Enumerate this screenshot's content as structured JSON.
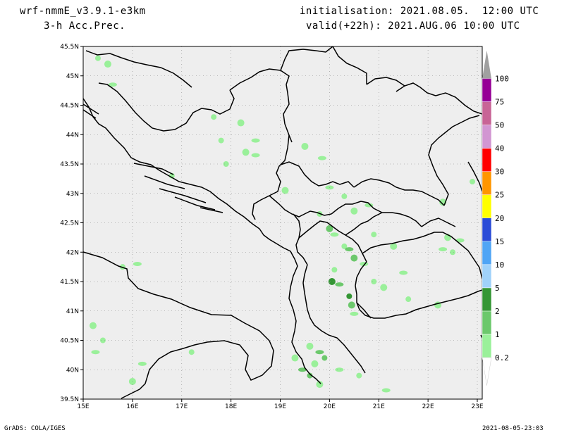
{
  "header": {
    "model": "wrf-nmmE_v3.9.1-e3km",
    "field": "3-h Acc.Prec.",
    "init": "initialisation: 2021.08.05.  12:00 UTC",
    "valid": "valid(+22h): 2021.AUG.06 10:00 UTC"
  },
  "footer": {
    "credit": "GrADS: COLA/IGES",
    "timestamp": "2021-08-05-23:03"
  },
  "map": {
    "lat_ticks": [
      "45.5N",
      "45N",
      "44.5N",
      "44N",
      "43.5N",
      "43N",
      "42.5N",
      "42N",
      "41.5N",
      "41N",
      "40.5N",
      "40N",
      "39.5N"
    ],
    "lon_ticks": [
      "15E",
      "16E",
      "17E",
      "18E",
      "19E",
      "20E",
      "21E",
      "22E",
      "23E"
    ],
    "lat_range": [
      39.5,
      45.5
    ],
    "lon_range": [
      15,
      23.1
    ],
    "grid": true,
    "background_color": "#eeeeee"
  },
  "colorbar": {
    "levels": [
      {
        "label": "0.2",
        "color": "#9af09a"
      },
      {
        "label": "1",
        "color": "#6cc86c"
      },
      {
        "label": "2",
        "color": "#349634"
      },
      {
        "label": "5",
        "color": "#a0d2fa"
      },
      {
        "label": "10",
        "color": "#50a5f5"
      },
      {
        "label": "15",
        "color": "#2a4bd7"
      },
      {
        "label": "20",
        "color": "#ffff00"
      },
      {
        "label": "25",
        "color": "#ff9600"
      },
      {
        "label": "30",
        "color": "#ff0000"
      },
      {
        "label": "40",
        "color": "#d296d2"
      },
      {
        "label": "50",
        "color": "#c86496"
      },
      {
        "label": "75",
        "color": "#960096"
      },
      {
        "label": "100",
        "color": "#a0a0a0"
      }
    ]
  },
  "precip_patches": [
    {
      "lon": 15.3,
      "lat": 45.3,
      "level": 0
    },
    {
      "lon": 15.5,
      "lat": 45.2,
      "level": 0
    },
    {
      "lon": 15.6,
      "lat": 44.85,
      "level": 0
    },
    {
      "lon": 17.65,
      "lat": 44.3,
      "level": 0
    },
    {
      "lon": 18.2,
      "lat": 44.2,
      "level": 0
    },
    {
      "lon": 18.5,
      "lat": 43.9,
      "level": 0
    },
    {
      "lon": 17.8,
      "lat": 43.9,
      "level": 0
    },
    {
      "lon": 18.3,
      "lat": 43.7,
      "level": 0
    },
    {
      "lon": 18.5,
      "lat": 43.65,
      "level": 0
    },
    {
      "lon": 17.9,
      "lat": 43.5,
      "level": 0
    },
    {
      "lon": 19.5,
      "lat": 43.8,
      "level": 0
    },
    {
      "lon": 19.85,
      "lat": 43.6,
      "level": 0
    },
    {
      "lon": 16.8,
      "lat": 43.3,
      "level": 0
    },
    {
      "lon": 19.1,
      "lat": 43.05,
      "level": 0
    },
    {
      "lon": 20.0,
      "lat": 43.1,
      "level": 0
    },
    {
      "lon": 20.3,
      "lat": 42.95,
      "level": 0
    },
    {
      "lon": 20.5,
      "lat": 42.7,
      "level": 0
    },
    {
      "lon": 20.8,
      "lat": 42.8,
      "level": 0
    },
    {
      "lon": 19.8,
      "lat": 42.65,
      "level": 0
    },
    {
      "lon": 20.0,
      "lat": 42.4,
      "level": 1
    },
    {
      "lon": 20.1,
      "lat": 42.3,
      "level": 0
    },
    {
      "lon": 20.3,
      "lat": 42.1,
      "level": 0
    },
    {
      "lon": 20.5,
      "lat": 41.9,
      "level": 1
    },
    {
      "lon": 20.4,
      "lat": 42.05,
      "level": 1
    },
    {
      "lon": 20.9,
      "lat": 42.3,
      "level": 0
    },
    {
      "lon": 21.3,
      "lat": 42.1,
      "level": 0
    },
    {
      "lon": 20.7,
      "lat": 41.8,
      "level": 0
    },
    {
      "lon": 20.1,
      "lat": 41.7,
      "level": 0
    },
    {
      "lon": 20.05,
      "lat": 41.5,
      "level": 2
    },
    {
      "lon": 20.2,
      "lat": 41.45,
      "level": 1
    },
    {
      "lon": 20.4,
      "lat": 41.25,
      "level": 2
    },
    {
      "lon": 20.45,
      "lat": 41.1,
      "level": 1
    },
    {
      "lon": 20.5,
      "lat": 40.95,
      "level": 0
    },
    {
      "lon": 20.9,
      "lat": 41.5,
      "level": 0
    },
    {
      "lon": 21.1,
      "lat": 41.4,
      "level": 0
    },
    {
      "lon": 21.5,
      "lat": 41.65,
      "level": 0
    },
    {
      "lon": 21.6,
      "lat": 41.2,
      "level": 0
    },
    {
      "lon": 22.2,
      "lat": 41.1,
      "level": 0
    },
    {
      "lon": 22.3,
      "lat": 42.05,
      "level": 0
    },
    {
      "lon": 22.5,
      "lat": 42.0,
      "level": 0
    },
    {
      "lon": 22.4,
      "lat": 42.25,
      "level": 0
    },
    {
      "lon": 22.65,
      "lat": 42.2,
      "level": 0
    },
    {
      "lon": 22.9,
      "lat": 43.2,
      "level": 0
    },
    {
      "lon": 22.3,
      "lat": 42.85,
      "level": 0
    },
    {
      "lon": 16.1,
      "lat": 41.8,
      "level": 0
    },
    {
      "lon": 15.8,
      "lat": 41.75,
      "level": 0
    },
    {
      "lon": 15.2,
      "lat": 40.75,
      "level": 0
    },
    {
      "lon": 15.25,
      "lat": 40.3,
      "level": 0
    },
    {
      "lon": 15.4,
      "lat": 40.5,
      "level": 0
    },
    {
      "lon": 16.0,
      "lat": 39.8,
      "level": 0
    },
    {
      "lon": 16.2,
      "lat": 40.1,
      "level": 0
    },
    {
      "lon": 17.2,
      "lat": 40.3,
      "level": 0
    },
    {
      "lon": 19.6,
      "lat": 40.4,
      "level": 0
    },
    {
      "lon": 19.8,
      "lat": 40.3,
      "level": 1
    },
    {
      "lon": 19.9,
      "lat": 40.2,
      "level": 1
    },
    {
      "lon": 19.7,
      "lat": 40.1,
      "level": 0
    },
    {
      "lon": 19.45,
      "lat": 40.0,
      "level": 1
    },
    {
      "lon": 19.6,
      "lat": 39.9,
      "level": 1
    },
    {
      "lon": 19.8,
      "lat": 39.75,
      "level": 0
    },
    {
      "lon": 20.2,
      "lat": 40.0,
      "level": 0
    },
    {
      "lon": 20.6,
      "lat": 39.9,
      "level": 0
    },
    {
      "lon": 19.3,
      "lat": 40.2,
      "level": 0
    },
    {
      "lon": 21.15,
      "lat": 39.65,
      "level": 0
    }
  ]
}
